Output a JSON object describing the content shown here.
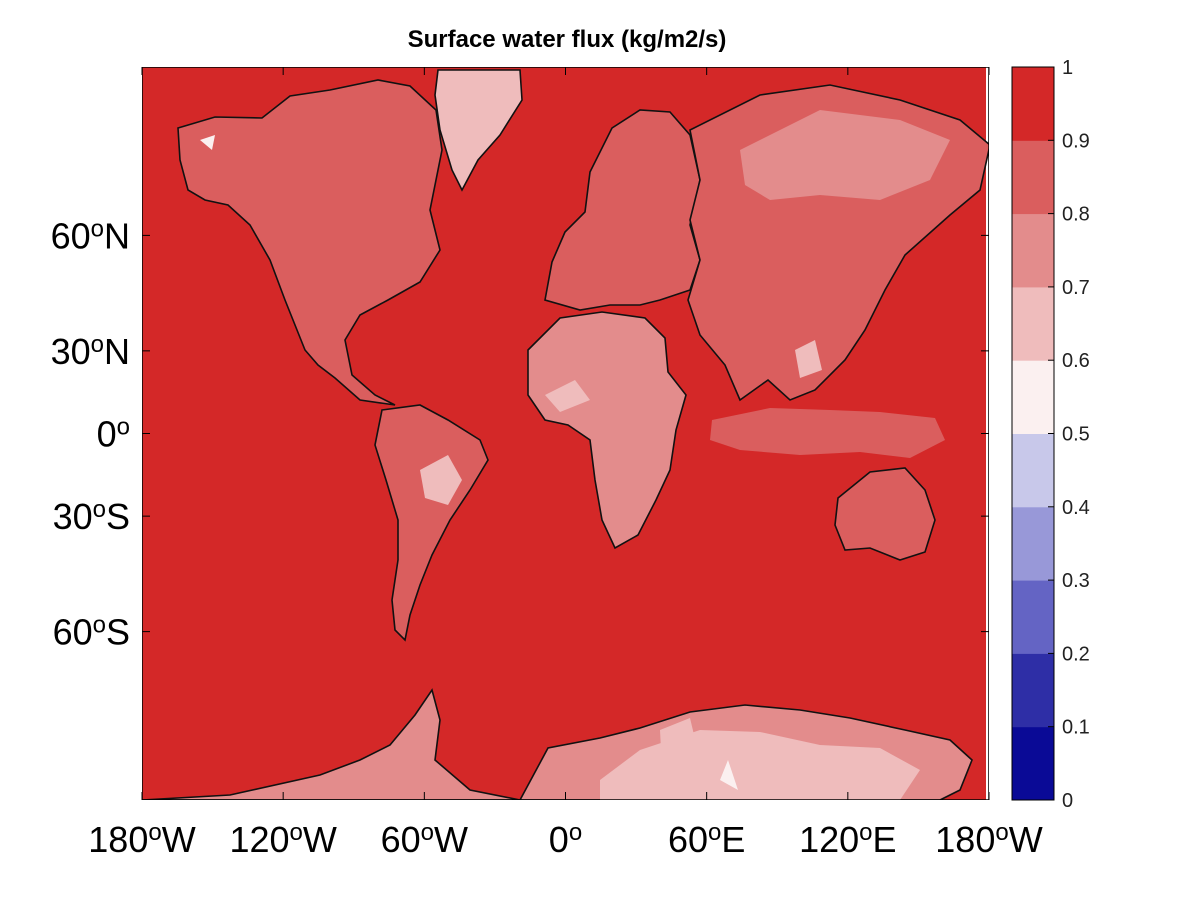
{
  "chart_data": {
    "type": "heatmap",
    "title": "Surface water flux (kg/m2/s)",
    "xlabel": "",
    "ylabel": "",
    "projection": "mercator",
    "xlim": [
      -180,
      180
    ],
    "ylim": [
      -80,
      80
    ],
    "x_ticks": [
      {
        "value": -180,
        "deg": "180",
        "hemi": "W"
      },
      {
        "value": -120,
        "deg": "120",
        "hemi": "W"
      },
      {
        "value": -60,
        "deg": "60",
        "hemi": "W"
      },
      {
        "value": 0,
        "deg": "0",
        "hemi": ""
      },
      {
        "value": 60,
        "deg": "60",
        "hemi": "E"
      },
      {
        "value": 120,
        "deg": "120",
        "hemi": "E"
      },
      {
        "value": 180,
        "deg": "180",
        "hemi": "W"
      }
    ],
    "y_ticks": [
      {
        "value": 60,
        "deg": "60",
        "hemi": "N"
      },
      {
        "value": 30,
        "deg": "30",
        "hemi": "N"
      },
      {
        "value": 0,
        "deg": "0",
        "hemi": ""
      },
      {
        "value": -30,
        "deg": "30",
        "hemi": "S"
      },
      {
        "value": -60,
        "deg": "60",
        "hemi": "S"
      }
    ],
    "colorbar": {
      "ticks": [
        "0",
        "0.1",
        "0.2",
        "0.3",
        "0.4",
        "0.5",
        "0.6",
        "0.7",
        "0.8",
        "0.9",
        "1"
      ],
      "levels": [
        {
          "min": 0.0,
          "max": 0.1,
          "color": "#0a0a96"
        },
        {
          "min": 0.1,
          "max": 0.2,
          "color": "#2e2ea6"
        },
        {
          "min": 0.2,
          "max": 0.3,
          "color": "#6464c4"
        },
        {
          "min": 0.3,
          "max": 0.4,
          "color": "#9898d8"
        },
        {
          "min": 0.4,
          "max": 0.5,
          "color": "#c8c8ea"
        },
        {
          "min": 0.5,
          "max": 0.6,
          "color": "#fbf0f0"
        },
        {
          "min": 0.6,
          "max": 0.7,
          "color": "#efbcbc"
        },
        {
          "min": 0.7,
          "max": 0.8,
          "color": "#e38c8c"
        },
        {
          "min": 0.8,
          "max": 0.9,
          "color": "#da5e5e"
        },
        {
          "min": 0.9,
          "max": 1.0,
          "color": "#d42828"
        }
      ]
    },
    "ocean_value": 0.95,
    "regions": [
      {
        "name": "North America",
        "value": 0.85
      },
      {
        "name": "Greenland",
        "value": 0.65
      },
      {
        "name": "South America",
        "value": 0.85
      },
      {
        "name": "Europe",
        "value": 0.85
      },
      {
        "name": "Africa",
        "value": 0.75
      },
      {
        "name": "Sahara",
        "value": 0.75
      },
      {
        "name": "Asia",
        "value": 0.85
      },
      {
        "name": "Siberia",
        "value": 0.75
      },
      {
        "name": "Indonesia warm pool",
        "value": 0.85
      },
      {
        "name": "Australia",
        "value": 0.85
      },
      {
        "name": "Antarctica",
        "value": 0.75
      },
      {
        "name": "Antarctic interior",
        "value": 0.65
      }
    ]
  }
}
